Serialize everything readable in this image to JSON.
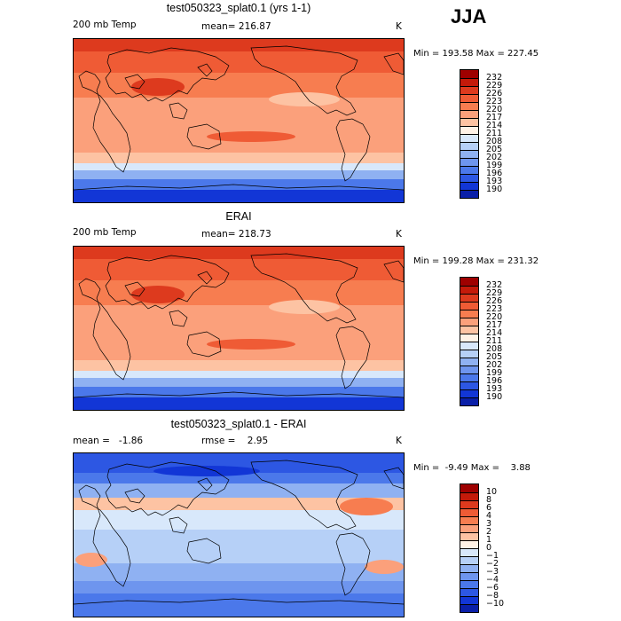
{
  "season": "JJA",
  "panels": [
    {
      "title": "test050323_splat0.1 (yrs 1-1)",
      "left_label": "200 mb Temp",
      "center_label": "mean= 216.87",
      "unit": "K",
      "minmax": "Min = 193.58 Max = 227.45",
      "scale": "abs",
      "colorbar": {
        "labels": [
          "232",
          "229",
          "226",
          "223",
          "220",
          "217",
          "214",
          "211",
          "208",
          "205",
          "202",
          "199",
          "196",
          "193",
          "190"
        ],
        "colors": [
          "#9e0000",
          "#c41a0a",
          "#dd3a1e",
          "#ef5b35",
          "#f77d50",
          "#fba07b",
          "#fdc3a3",
          "#fff2e6",
          "#d8e8fb",
          "#b6d0f7",
          "#8fb1f2",
          "#6e95ee",
          "#4b78ea",
          "#2d57e3",
          "#1236d6",
          "#0a1fa8"
        ]
      }
    },
    {
      "title": "ERAI",
      "left_label": "200 mb Temp",
      "center_label": "mean= 218.73",
      "unit": "K",
      "minmax": "Min = 199.28 Max = 231.32",
      "scale": "abs",
      "colorbar": {
        "labels": [
          "232",
          "229",
          "226",
          "223",
          "220",
          "217",
          "214",
          "211",
          "208",
          "205",
          "202",
          "199",
          "196",
          "193",
          "190"
        ],
        "colors": [
          "#9e0000",
          "#c41a0a",
          "#dd3a1e",
          "#ef5b35",
          "#f77d50",
          "#fba07b",
          "#fdc3a3",
          "#fff2e6",
          "#d8e8fb",
          "#b6d0f7",
          "#8fb1f2",
          "#6e95ee",
          "#4b78ea",
          "#2d57e3",
          "#1236d6",
          "#0a1fa8"
        ]
      }
    },
    {
      "title": "test050323_splat0.1 - ERAI",
      "left_label": "mean =   -1.86",
      "center_label": "rmse =    2.95",
      "unit": "K",
      "minmax": "Min =  -9.49 Max =    3.88",
      "scale": "diff",
      "colorbar": {
        "labels": [
          "10",
          "8",
          "6",
          "4",
          "3",
          "2",
          "1",
          "0",
          "−1",
          "−2",
          "−3",
          "−4",
          "−6",
          "−8",
          "−10"
        ],
        "colors": [
          "#9e0000",
          "#c41a0a",
          "#dd3a1e",
          "#ef5b35",
          "#f77d50",
          "#fba07b",
          "#fdc3a3",
          "#fff2e6",
          "#d8e8fb",
          "#b6d0f7",
          "#8fb1f2",
          "#6e95ee",
          "#4b78ea",
          "#2d57e3",
          "#1236d6",
          "#0a1fa8"
        ]
      }
    }
  ]
}
